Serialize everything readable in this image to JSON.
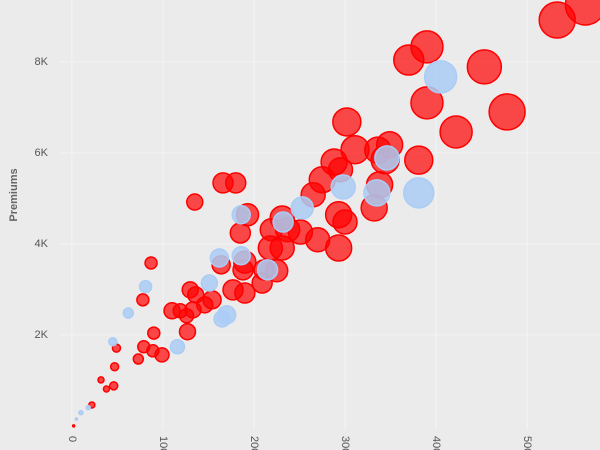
{
  "chart_data": {
    "type": "bubble",
    "y_label": "Premiums",
    "xlim": [
      -13,
      580
    ],
    "ylim": [
      -530,
      9360
    ],
    "xticks": [
      0,
      100,
      200,
      300,
      400,
      500
    ],
    "yticks": [
      {
        "value": 2000,
        "label": "2K"
      },
      {
        "value": 4000,
        "label": "4K"
      },
      {
        "value": 6000,
        "label": "6K"
      },
      {
        "value": 8000,
        "label": "8K"
      }
    ],
    "grid": true,
    "series": [
      {
        "color": "#ff0000",
        "x": [
          564,
          533,
          390,
          370,
          453,
          478,
          390,
          422,
          302,
          311,
          349,
          344,
          336,
          288,
          381,
          295,
          275,
          265,
          338,
          332,
          293,
          300,
          231,
          237,
          219,
          251,
          270,
          293,
          218,
          231,
          193,
          185,
          166,
          180,
          135,
          87,
          190,
          188,
          225,
          211,
          164,
          177,
          190,
          209,
          130,
          136,
          154,
          146,
          110,
          119,
          133,
          126,
          127,
          78,
          90,
          79,
          89,
          99,
          73,
          49,
          47,
          46,
          32,
          38,
          22,
          2
        ],
        "values": [
          9250,
          8920,
          8330,
          8040,
          7890,
          6900,
          7100,
          6460,
          6680,
          6070,
          6180,
          5850,
          6060,
          5800,
          5840,
          5630,
          5410,
          5080,
          5300,
          4790,
          4640,
          4480,
          4570,
          4310,
          4310,
          4260,
          4090,
          3910,
          3910,
          3910,
          4640,
          4240,
          5340,
          5340,
          4920,
          3580,
          3600,
          3430,
          3410,
          3430,
          3540,
          2990,
          2920,
          3140,
          2990,
          2880,
          2770,
          2660,
          2530,
          2530,
          2550,
          2420,
          2070,
          2770,
          2040,
          1740,
          1650,
          1560,
          1470,
          1710,
          1300,
          880,
          1010,
          810,
          460,
          0
        ],
        "sizes": [
          20,
          18,
          16,
          15,
          17,
          18,
          16,
          16,
          14,
          14,
          13,
          14,
          13,
          13,
          14,
          12,
          13,
          12,
          13,
          13,
          13,
          12,
          12,
          12,
          11,
          12,
          12,
          13,
          12,
          12,
          11,
          10,
          10,
          10,
          8,
          6,
          11,
          10,
          11,
          10,
          9,
          10,
          10,
          10,
          8,
          8,
          9,
          8,
          8,
          7,
          8,
          7,
          8,
          6,
          6,
          6,
          6,
          7,
          5,
          4,
          4,
          4,
          3,
          3,
          3,
          1
        ]
      },
      {
        "color": "#aaccf5",
        "x": [
          405,
          381,
          298,
          335,
          253,
          232,
          186,
          162,
          151,
          186,
          215,
          170,
          165,
          116,
          81,
          62,
          45,
          18,
          10,
          5,
          346
        ],
        "values": [
          7670,
          5120,
          5250,
          5120,
          4790,
          4480,
          4640,
          3690,
          3140,
          3740,
          3430,
          2440,
          2350,
          1740,
          3060,
          2480,
          1850,
          400,
          290,
          150,
          5890
        ],
        "sizes": [
          16,
          15,
          12,
          13,
          11,
          10,
          9,
          9,
          8,
          9,
          10,
          9,
          8,
          7,
          6,
          5,
          4,
          2,
          2,
          1,
          12
        ]
      }
    ]
  }
}
